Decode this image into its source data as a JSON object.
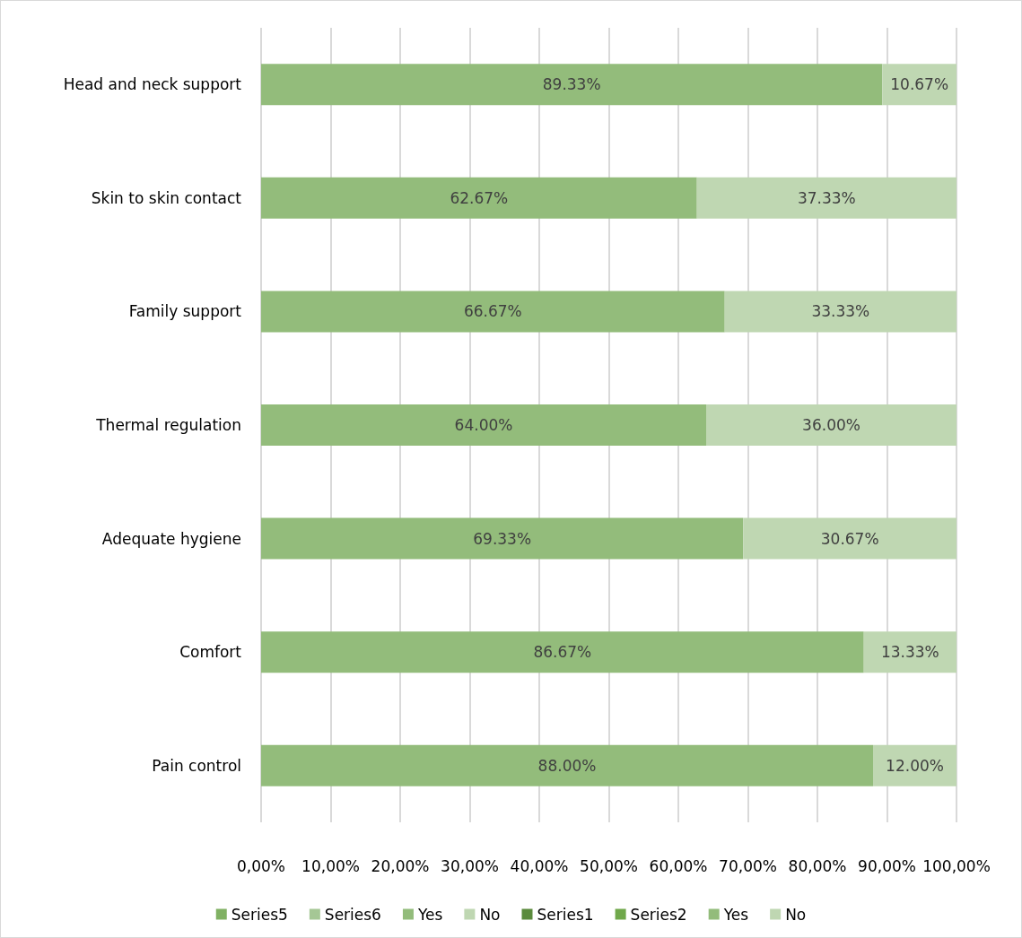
{
  "chart_data": {
    "type": "bar",
    "orientation": "horizontal",
    "stacked": true,
    "categories": [
      "Head and neck support",
      "Skin to skin contact",
      "Family support",
      "Thermal regulation",
      "Adequate hygiene",
      "Comfort",
      "Pain control"
    ],
    "series": [
      {
        "name": "Series5",
        "color": "#80b163",
        "values": [
          null,
          null,
          null,
          null,
          null,
          null,
          null
        ]
      },
      {
        "name": "Series6",
        "color": "#a5c795",
        "values": [
          null,
          null,
          null,
          null,
          null,
          null,
          null
        ]
      },
      {
        "name": "Yes",
        "color": "#93bc7b",
        "values": [
          89.33,
          62.67,
          66.67,
          64.0,
          69.33,
          86.67,
          88.0
        ],
        "value_labels": [
          "89.33%",
          "62.67%",
          "66.67%",
          "64.00%",
          "69.33%",
          "86.67%",
          "88.00%"
        ]
      },
      {
        "name": "No",
        "color": "#bfd7b2",
        "values": [
          10.67,
          37.33,
          33.33,
          36.0,
          30.67,
          13.33,
          12.0
        ],
        "value_labels": [
          "10.67%",
          "37.33%",
          "33.33%",
          "36.00%",
          "30.67%",
          "13.33%",
          "12.00%"
        ]
      },
      {
        "name": "Series1",
        "color": "#5b8b3d",
        "values": [
          null,
          null,
          null,
          null,
          null,
          null,
          null
        ]
      },
      {
        "name": "Series2",
        "color": "#70a84b",
        "values": [
          null,
          null,
          null,
          null,
          null,
          null,
          null
        ]
      },
      {
        "name": "Yes",
        "color": "#93bc7b",
        "values": [
          null,
          null,
          null,
          null,
          null,
          null,
          null
        ]
      },
      {
        "name": "No",
        "color": "#bfd7b2",
        "values": [
          null,
          null,
          null,
          null,
          null,
          null,
          null
        ]
      }
    ],
    "xlim": [
      0,
      100
    ],
    "xticks": [
      {
        "value": 0,
        "label": "0,00%"
      },
      {
        "value": 10,
        "label": "10,00%"
      },
      {
        "value": 20,
        "label": "20,00%"
      },
      {
        "value": 30,
        "label": "30,00%"
      },
      {
        "value": 40,
        "label": "40,00%"
      },
      {
        "value": 50,
        "label": "50,00%"
      },
      {
        "value": 60,
        "label": "60,00%"
      },
      {
        "value": 70,
        "label": "70,00%"
      },
      {
        "value": 80,
        "label": "80,00%"
      },
      {
        "value": 90,
        "label": "90,00%"
      },
      {
        "value": 100,
        "label": "100,00%"
      }
    ],
    "grid": "x",
    "legend": "bottom"
  }
}
